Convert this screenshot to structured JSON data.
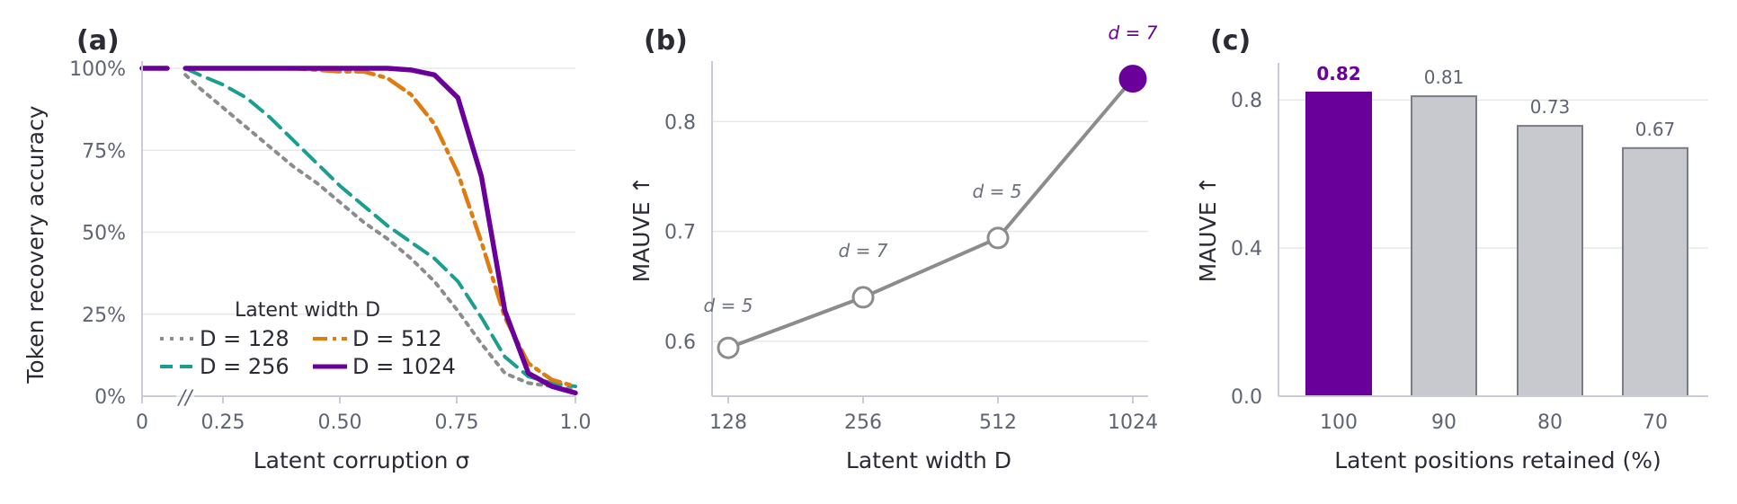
{
  "colors": {
    "purple": "#6a0099",
    "teal": "#1a9e8f",
    "orange": "#e07b10",
    "gray_line": "#8c8c8c",
    "grid": "#e6e8ee",
    "axis": "#c9ccd6",
    "bar_gray": "#c7c9cf",
    "bar_edge": "#7a7d85",
    "text": "#2b2b35",
    "tick": "#5f6472"
  },
  "chart_data": [
    {
      "panel": "(a)",
      "type": "line",
      "xlabel": "Latent corruption σ",
      "ylabel": "Token recovery accuracy",
      "xlim": [
        0,
        1.0
      ],
      "ylim": [
        0,
        100
      ],
      "x_ticks": [
        0,
        0.25,
        0.5,
        0.75,
        1.0
      ],
      "x_tick_labels": [
        "0",
        "0.25",
        "0.50",
        "0.75",
        "1.0"
      ],
      "y_ticks": [
        0,
        25,
        50,
        75,
        100
      ],
      "y_tick_labels": [
        "0%",
        "25%",
        "50%",
        "75%",
        "100%"
      ],
      "axis_break_label": "//",
      "grid": "horizontal",
      "legend": {
        "title": "Latent width D",
        "placement": "lower-left",
        "entries": [
          "D = 128",
          "D = 512",
          "D = 256",
          "D = 1024"
        ]
      },
      "series": [
        {
          "name": "D = 128",
          "style": "dotted",
          "color": "#8c8c8c",
          "x": [
            0.0,
            0.08,
            0.17,
            0.2,
            0.25,
            0.3,
            0.35,
            0.4,
            0.45,
            0.5,
            0.55,
            0.6,
            0.65,
            0.7,
            0.75,
            0.8,
            0.85,
            0.9,
            0.95,
            1.0
          ],
          "y": [
            100,
            100,
            98,
            94,
            88,
            82,
            76,
            70,
            65,
            59,
            53,
            48,
            42,
            35,
            26,
            16,
            7,
            4,
            3,
            2
          ]
        },
        {
          "name": "D = 256",
          "style": "dashed",
          "color": "#1a9e8f",
          "x": [
            0.0,
            0.08,
            0.17,
            0.2,
            0.25,
            0.3,
            0.35,
            0.4,
            0.45,
            0.5,
            0.55,
            0.6,
            0.65,
            0.7,
            0.75,
            0.8,
            0.85,
            0.9,
            0.95,
            1.0
          ],
          "y": [
            100,
            100,
            100,
            98,
            95,
            91,
            85,
            78,
            71,
            64,
            58,
            52,
            47,
            42,
            35,
            24,
            12,
            6,
            4,
            3
          ]
        },
        {
          "name": "D = 512",
          "style": "dashdot",
          "color": "#e07b10",
          "x": [
            0.0,
            0.08,
            0.17,
            0.2,
            0.3,
            0.4,
            0.5,
            0.55,
            0.6,
            0.65,
            0.7,
            0.75,
            0.8,
            0.85,
            0.9,
            0.95,
            1.0
          ],
          "y": [
            100,
            100,
            100,
            100,
            100,
            100,
            99,
            99,
            97,
            92,
            83,
            68,
            47,
            24,
            10,
            5,
            3
          ]
        },
        {
          "name": "D = 1024",
          "style": "solid",
          "color": "#6a0099",
          "x": [
            0.0,
            0.08,
            0.17,
            0.2,
            0.3,
            0.4,
            0.5,
            0.6,
            0.65,
            0.7,
            0.75,
            0.8,
            0.85,
            0.9,
            0.95,
            1.0
          ],
          "y": [
            100,
            100,
            100,
            100,
            100,
            100,
            100,
            100,
            99.5,
            98,
            91,
            67,
            26,
            7,
            3,
            1
          ]
        }
      ]
    },
    {
      "panel": "(b)",
      "type": "line",
      "xlabel": "Latent width D",
      "ylabel": "MAUVE ↑",
      "categories": [
        "128",
        "256",
        "512",
        "1024"
      ],
      "values": [
        0.594,
        0.64,
        0.694,
        0.839
      ],
      "point_labels": [
        "d = 5",
        "d = 7",
        "d = 5",
        "d = 7"
      ],
      "highlight_index": 3,
      "ylim": [
        0.55,
        0.855
      ],
      "y_ticks": [
        0.6,
        0.7,
        0.8
      ],
      "y_tick_labels": [
        "0.6",
        "0.7",
        "0.8"
      ],
      "grid": "horizontal"
    },
    {
      "panel": "(c)",
      "type": "bar",
      "xlabel": "Latent positions retained (%)",
      "ylabel": "MAUVE ↑",
      "categories": [
        "100",
        "90",
        "80",
        "70"
      ],
      "values": [
        0.82,
        0.81,
        0.73,
        0.67
      ],
      "value_labels": [
        "0.82",
        "0.81",
        "0.73",
        "0.67"
      ],
      "highlight_index": 0,
      "ylim": [
        0,
        0.9
      ],
      "y_ticks": [
        0.0,
        0.4,
        0.8
      ],
      "y_tick_labels": [
        "0.0",
        "0.4",
        "0.8"
      ],
      "grid": "horizontal"
    }
  ]
}
